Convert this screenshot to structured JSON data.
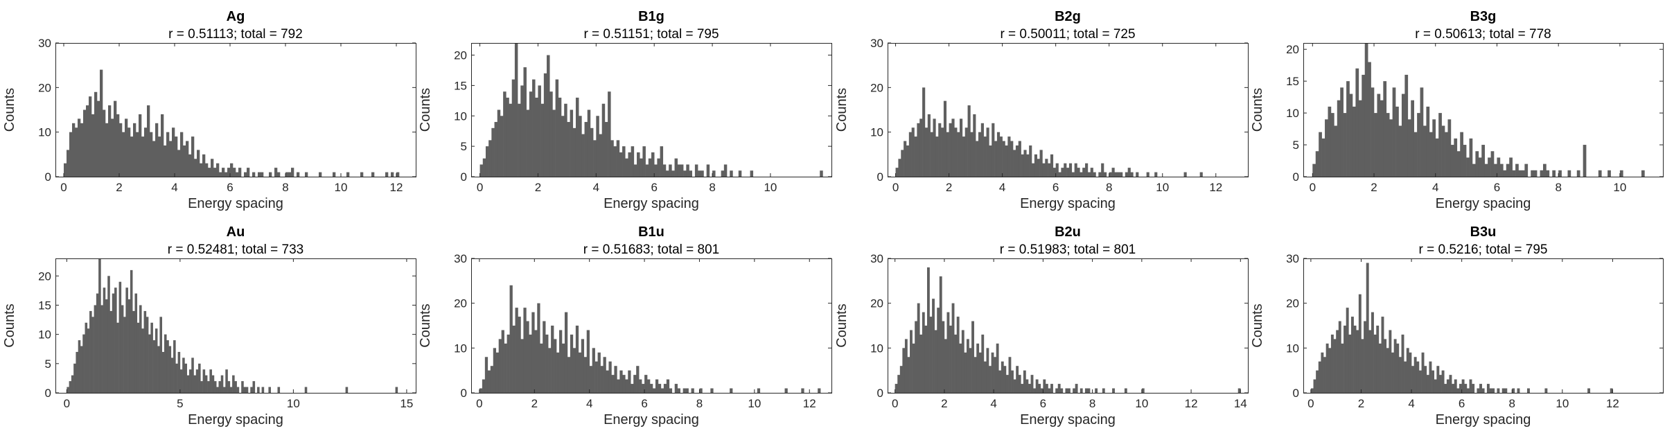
{
  "figure": {
    "background": "#ffffff",
    "bar_color": "#5f5f5f",
    "axis_color": "#262626"
  },
  "chart_data": [
    {
      "type": "bar",
      "title": "Ag",
      "subtitle": "r = 0.51113; total = 792",
      "xlabel": "Energy spacing",
      "ylabel": "Counts",
      "xlim": [
        -0.3,
        12.7
      ],
      "ylim": [
        0,
        30
      ],
      "xticks": [
        0,
        2,
        4,
        6,
        8,
        10,
        12
      ],
      "yticks": [
        0,
        10,
        20,
        30
      ],
      "bin_start": 0,
      "bin_width": 0.1,
      "values": [
        3,
        6,
        10,
        12,
        11,
        13,
        12,
        15,
        16,
        18,
        14,
        19,
        17,
        24,
        15,
        12,
        16,
        13,
        17,
        14,
        12,
        10,
        13,
        11,
        9,
        12,
        10,
        14,
        9,
        11,
        16,
        10,
        8,
        12,
        9,
        14,
        7,
        10,
        8,
        11,
        9,
        6,
        10,
        7,
        8,
        5,
        9,
        4,
        6,
        3,
        5,
        3,
        2,
        4,
        2,
        3,
        1,
        2,
        1,
        2,
        3,
        2,
        1,
        2,
        0,
        1,
        2,
        0,
        1,
        0,
        1,
        1,
        0,
        0,
        1,
        0,
        2,
        1,
        0,
        0,
        1,
        1,
        2,
        0,
        1,
        0,
        0,
        1,
        0,
        0,
        0,
        0,
        1,
        0,
        0,
        0,
        0,
        1,
        0,
        0,
        0,
        0,
        1,
        0,
        0,
        0,
        0,
        1,
        0,
        0,
        0,
        1,
        0,
        0,
        0,
        0,
        1,
        0,
        1,
        0,
        1
      ]
    },
    {
      "type": "bar",
      "title": "B1g",
      "subtitle": "r = 0.51151; total = 795",
      "xlabel": "Energy spacing",
      "ylabel": "Counts",
      "xlim": [
        -0.3,
        12.1
      ],
      "ylim": [
        0,
        22
      ],
      "xticks": [
        0,
        2,
        4,
        6,
        8,
        10
      ],
      "yticks": [
        0,
        5,
        10,
        15,
        20
      ],
      "bin_start": 0,
      "bin_width": 0.1,
      "values": [
        2,
        3,
        5,
        6,
        8,
        9,
        11,
        10,
        14,
        13,
        12,
        16,
        22,
        12,
        15,
        18,
        11,
        14,
        16,
        13,
        15,
        12,
        17,
        20,
        14,
        11,
        16,
        13,
        10,
        12,
        9,
        11,
        8,
        13,
        10,
        7,
        9,
        11,
        8,
        6,
        10,
        7,
        12,
        9,
        14,
        6,
        5,
        6,
        4,
        5,
        3,
        4,
        5,
        2,
        4,
        3,
        5,
        2,
        3,
        4,
        2,
        3,
        5,
        2,
        1,
        2,
        1,
        3,
        2,
        2,
        1,
        2,
        1,
        0,
        2,
        1,
        1,
        0,
        2,
        0,
        1,
        0,
        0,
        1,
        2,
        0,
        1,
        0,
        0,
        1,
        0,
        0,
        0,
        1,
        0,
        0,
        0,
        0,
        0,
        0,
        0,
        0,
        0,
        0,
        0,
        0,
        0,
        0,
        0,
        0,
        0,
        0,
        0,
        0,
        0,
        0,
        0,
        1
      ]
    },
    {
      "type": "bar",
      "title": "B2g",
      "subtitle": "r = 0.50011; total = 725",
      "xlabel": "Energy spacing",
      "ylabel": "Counts",
      "xlim": [
        -0.3,
        13.2
      ],
      "ylim": [
        0,
        30
      ],
      "xticks": [
        0,
        2,
        4,
        6,
        8,
        10,
        12
      ],
      "yticks": [
        0,
        10,
        20,
        30
      ],
      "bin_start": 0,
      "bin_width": 0.1,
      "values": [
        2,
        4,
        6,
        8,
        7,
        10,
        11,
        9,
        12,
        13,
        20,
        11,
        14,
        10,
        13,
        9,
        12,
        11,
        17,
        10,
        12,
        13,
        11,
        10,
        13,
        9,
        11,
        16,
        10,
        14,
        8,
        10,
        12,
        9,
        11,
        7,
        12,
        8,
        10,
        9,
        8,
        7,
        9,
        8,
        6,
        7,
        8,
        5,
        6,
        5,
        7,
        3,
        5,
        4,
        6,
        3,
        4,
        3,
        5,
        2,
        3,
        1,
        2,
        3,
        2,
        3,
        1,
        3,
        2,
        1,
        2,
        3,
        1,
        2,
        1,
        0,
        1,
        3,
        1,
        0,
        1,
        2,
        1,
        1,
        1,
        0,
        1,
        2,
        1,
        0,
        1,
        0,
        0,
        0,
        1,
        0,
        0,
        1,
        0,
        0,
        0,
        0,
        0,
        0,
        0,
        0,
        0,
        0,
        1,
        0,
        0,
        0,
        0,
        0,
        1
      ]
    },
    {
      "type": "bar",
      "title": "B3g",
      "subtitle": "r = 0.50613; total = 778",
      "xlabel": "Energy spacing",
      "ylabel": "Counts",
      "xlim": [
        -0.3,
        11.4
      ],
      "ylim": [
        0,
        21
      ],
      "xticks": [
        0,
        2,
        4,
        6,
        8,
        10
      ],
      "yticks": [
        0,
        5,
        10,
        15,
        20
      ],
      "bin_start": 0,
      "bin_width": 0.1,
      "values": [
        2,
        4,
        7,
        6,
        9,
        11,
        10,
        8,
        12,
        14,
        10,
        15,
        13,
        11,
        17,
        12,
        16,
        21,
        18,
        14,
        10,
        13,
        12,
        15,
        10,
        9,
        14,
        11,
        8,
        13,
        16,
        9,
        12,
        7,
        10,
        14,
        8,
        11,
        7,
        9,
        6,
        10,
        8,
        7,
        9,
        5,
        6,
        4,
        7,
        5,
        3,
        6,
        2,
        4,
        3,
        5,
        2,
        3,
        4,
        2,
        3,
        2,
        1,
        2,
        3,
        1,
        2,
        1,
        1,
        2,
        0,
        1,
        1,
        0,
        1,
        2,
        1,
        0,
        1,
        0,
        1,
        0,
        0,
        1,
        0,
        0,
        1,
        0,
        5,
        0,
        0,
        0,
        0,
        1,
        0,
        0,
        1,
        0,
        0,
        0,
        1,
        0,
        0,
        0,
        0,
        0,
        0,
        1
      ]
    },
    {
      "type": "bar",
      "title": "Au",
      "subtitle": "r = 0.52481; total = 733",
      "xlabel": "Energy spacing",
      "ylabel": "Counts",
      "xlim": [
        -0.5,
        15.4
      ],
      "ylim": [
        0,
        23
      ],
      "xticks": [
        0,
        5,
        10,
        15
      ],
      "yticks": [
        0,
        5,
        10,
        15,
        20
      ],
      "bin_start": 0,
      "bin_width": 0.1,
      "values": [
        1,
        2,
        3,
        5,
        7,
        9,
        8,
        10,
        12,
        11,
        14,
        13,
        15,
        17,
        23,
        15,
        18,
        16,
        20,
        14,
        17,
        18,
        12,
        19,
        15,
        13,
        18,
        16,
        21,
        14,
        17,
        12,
        15,
        11,
        14,
        13,
        10,
        12,
        9,
        11,
        8,
        13,
        7,
        10,
        9,
        8,
        6,
        9,
        5,
        7,
        4,
        6,
        5,
        3,
        4,
        6,
        3,
        4,
        5,
        2,
        4,
        3,
        2,
        4,
        3,
        2,
        1,
        2,
        3,
        1,
        4,
        2,
        1,
        3,
        2,
        1,
        0,
        2,
        1,
        1,
        0,
        1,
        2,
        0,
        1,
        0,
        1,
        0,
        0,
        1,
        0,
        0,
        0,
        1,
        0,
        0,
        0,
        0,
        0,
        0,
        0,
        0,
        0,
        0,
        0,
        1,
        0,
        0,
        0,
        0,
        0,
        0,
        0,
        0,
        0,
        0,
        0,
        0,
        0,
        0,
        0,
        0,
        0,
        1,
        0,
        0,
        0,
        0,
        0,
        0,
        0,
        0,
        0,
        0,
        0,
        0,
        0,
        0,
        0,
        0,
        0,
        0,
        0,
        0,
        0,
        1
      ]
    },
    {
      "type": "bar",
      "title": "B1u",
      "subtitle": "r = 0.51683; total = 801",
      "xlabel": "Energy spacing",
      "ylabel": "Counts",
      "xlim": [
        -0.3,
        12.8
      ],
      "ylim": [
        0,
        30
      ],
      "xticks": [
        0,
        2,
        4,
        6,
        8,
        10,
        12
      ],
      "yticks": [
        0,
        10,
        20,
        30
      ],
      "bin_start": 0,
      "bin_width": 0.1,
      "values": [
        1,
        3,
        8,
        5,
        6,
        10,
        9,
        12,
        14,
        11,
        13,
        24,
        15,
        19,
        17,
        12,
        19,
        16,
        13,
        18,
        14,
        20,
        11,
        16,
        13,
        10,
        15,
        12,
        9,
        14,
        11,
        18,
        8,
        13,
        10,
        15,
        9,
        12,
        8,
        14,
        6,
        10,
        7,
        9,
        6,
        8,
        5,
        7,
        4,
        6,
        3,
        5,
        4,
        3,
        5,
        2,
        4,
        6,
        3,
        2,
        4,
        3,
        2,
        1,
        3,
        2,
        1,
        2,
        3,
        1,
        0,
        2,
        1,
        0,
        1,
        1,
        0,
        1,
        0,
        0,
        1,
        0,
        0,
        0,
        1,
        0,
        0,
        0,
        0,
        0,
        0,
        1,
        0,
        0,
        0,
        0,
        0,
        0,
        0,
        0,
        0,
        1,
        0,
        0,
        0,
        0,
        0,
        0,
        0,
        0,
        0,
        1,
        0,
        0,
        0,
        0,
        0,
        1,
        0,
        0,
        0,
        0,
        0,
        1
      ]
    },
    {
      "type": "bar",
      "title": "B2u",
      "subtitle": "r = 0.51983; total = 801",
      "xlabel": "Energy spacing",
      "ylabel": "Counts",
      "xlim": [
        -0.3,
        14.3
      ],
      "ylim": [
        0,
        30
      ],
      "xticks": [
        0,
        2,
        4,
        6,
        8,
        10,
        12,
        14
      ],
      "yticks": [
        0,
        10,
        20,
        30
      ],
      "bin_start": 0,
      "bin_width": 0.1,
      "values": [
        2,
        4,
        6,
        10,
        12,
        8,
        14,
        11,
        16,
        20,
        13,
        18,
        15,
        28,
        17,
        21,
        14,
        19,
        26,
        16,
        12,
        18,
        15,
        20,
        13,
        17,
        11,
        14,
        9,
        12,
        10,
        16,
        8,
        11,
        9,
        13,
        7,
        10,
        6,
        9,
        8,
        11,
        5,
        7,
        6,
        4,
        8,
        5,
        3,
        6,
        4,
        2,
        5,
        3,
        2,
        4,
        1,
        3,
        2,
        1,
        3,
        2,
        1,
        2,
        0,
        1,
        2,
        1,
        0,
        1,
        1,
        0,
        1,
        2,
        0,
        1,
        0,
        1,
        1,
        0,
        0,
        1,
        0,
        0,
        1,
        0,
        0,
        0,
        1,
        0,
        0,
        0,
        0,
        1,
        0,
        0,
        0,
        0,
        0,
        0,
        1,
        0,
        0,
        0,
        0,
        0,
        0,
        0,
        0,
        0,
        0,
        0,
        0,
        0,
        0,
        0,
        0,
        0,
        0,
        0,
        0,
        0,
        0,
        0,
        0,
        0,
        0,
        0,
        0,
        0,
        0,
        0,
        0,
        0,
        0,
        0,
        0,
        0,
        0,
        1
      ]
    },
    {
      "type": "bar",
      "title": "B3u",
      "subtitle": "r = 0.5216; total = 795",
      "xlabel": "Energy spacing",
      "ylabel": "Counts",
      "xlim": [
        -0.3,
        14.0
      ],
      "ylim": [
        0,
        30
      ],
      "xticks": [
        0,
        2,
        4,
        6,
        8,
        10,
        12
      ],
      "yticks": [
        0,
        10,
        20,
        30
      ],
      "bin_start": 0,
      "bin_width": 0.1,
      "values": [
        1,
        3,
        5,
        7,
        9,
        8,
        11,
        10,
        13,
        12,
        14,
        16,
        11,
        15,
        19,
        13,
        17,
        15,
        14,
        22,
        12,
        16,
        29,
        14,
        18,
        13,
        15,
        11,
        17,
        12,
        10,
        14,
        9,
        12,
        11,
        8,
        13,
        7,
        10,
        9,
        6,
        8,
        7,
        5,
        9,
        6,
        4,
        7,
        5,
        3,
        6,
        4,
        5,
        2,
        3,
        4,
        2,
        3,
        1,
        2,
        3,
        2,
        1,
        3,
        2,
        0,
        1,
        2,
        1,
        0,
        2,
        1,
        1,
        0,
        1,
        0,
        1,
        1,
        0,
        0,
        1,
        0,
        1,
        0,
        0,
        0,
        1,
        0,
        0,
        0,
        0,
        0,
        0,
        1,
        0,
        0,
        0,
        0,
        0,
        0,
        0,
        0,
        0,
        0,
        0,
        0,
        0,
        0,
        0,
        0,
        1,
        0,
        0,
        0,
        0,
        0,
        0,
        0,
        0,
        1
      ]
    }
  ]
}
